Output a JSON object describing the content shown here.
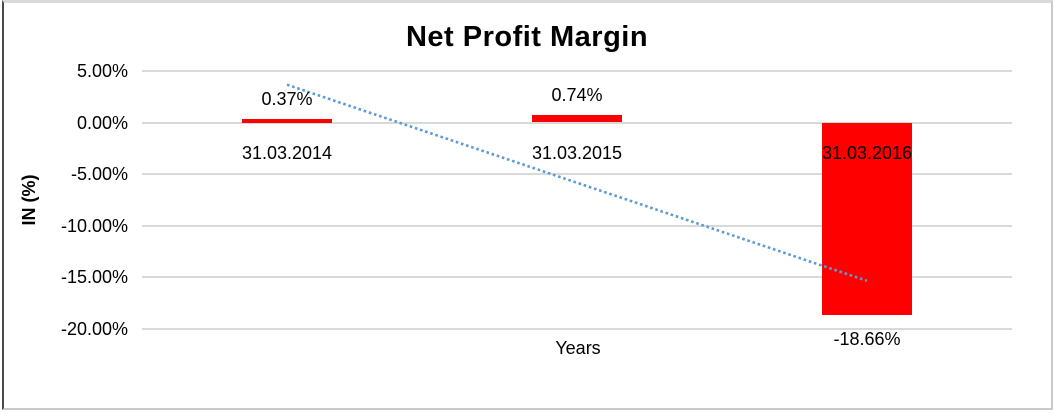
{
  "chart_data": {
    "type": "bar",
    "title": "Net Profit Margin",
    "xlabel": "Years",
    "ylabel": "IN (%)",
    "categories": [
      "31.03.2014",
      "31.03.2015",
      "31.03.2016"
    ],
    "values": [
      0.37,
      0.74,
      -18.66
    ],
    "data_labels": [
      "0.37%",
      "0.74%",
      "-18.66%"
    ],
    "yticks": [
      {
        "value": 5,
        "label": "5.00%"
      },
      {
        "value": 0,
        "label": "0.00%"
      },
      {
        "value": -5,
        "label": "-5.00%"
      },
      {
        "value": -10,
        "label": "-10.00%"
      },
      {
        "value": -15,
        "label": "-15.00%"
      },
      {
        "value": -20,
        "label": "-20.00%"
      }
    ],
    "ylim": [
      -20,
      5
    ],
    "grid": true,
    "legend": false,
    "trendline": {
      "type": "linear",
      "style": "dotted",
      "start_value": 3.67,
      "end_value": -15.37
    },
    "colors": {
      "bar": "#ff0000",
      "trendline": "#5b9bd5",
      "gridline": "#d9d9d9",
      "text": "#000000",
      "border": "#c9c9c9"
    }
  }
}
